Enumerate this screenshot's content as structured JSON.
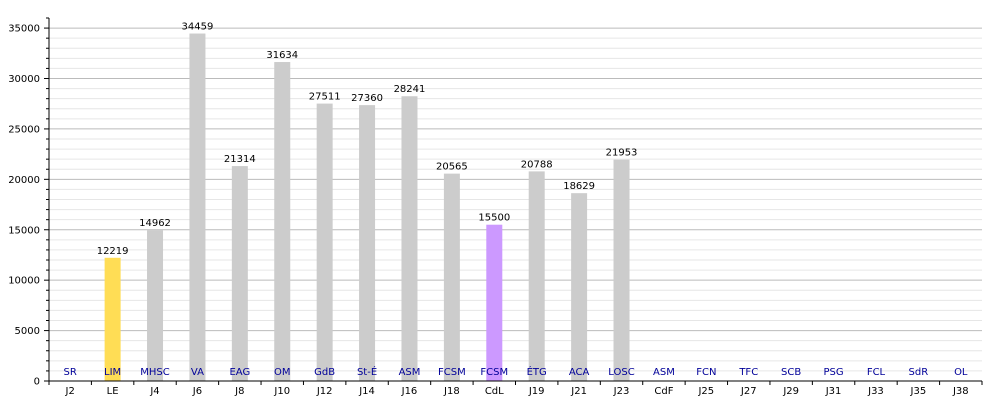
{
  "chart_data": {
    "type": "bar",
    "title": "",
    "xlabel": "",
    "ylabel": "",
    "ylim": [
      0,
      36000
    ],
    "yticks": [
      0,
      5000,
      10000,
      15000,
      20000,
      25000,
      30000,
      35000
    ],
    "grid": true,
    "categories": [
      "J2",
      "LE",
      "J4",
      "J6",
      "J8",
      "J10",
      "J12",
      "J14",
      "J16",
      "J18",
      "CdL",
      "J19",
      "J21",
      "J23",
      "CdF",
      "J25",
      "J27",
      "J29",
      "J31",
      "J33",
      "J35",
      "J38"
    ],
    "opponents": [
      "SR",
      "LIM",
      "MHSC",
      "VA",
      "EAG",
      "OM",
      "GdB",
      "St-É",
      "ASM",
      "FCSM",
      "FCSM",
      "ÉTG",
      "ACA",
      "LOSC",
      "ASM",
      "FCN",
      "TFC",
      "SCB",
      "PSG",
      "FCL",
      "SdR",
      "OL"
    ],
    "values": [
      null,
      12219,
      14962,
      34459,
      21314,
      31634,
      27511,
      27360,
      28241,
      20565,
      15500,
      20788,
      18629,
      21953,
      null,
      null,
      null,
      null,
      null,
      null,
      null,
      null
    ],
    "labels": [
      "",
      "12219",
      "14962",
      "34459",
      "21314",
      "31634",
      "27511",
      "27360",
      "28241",
      "20565",
      "15500",
      "20788",
      "18629",
      "21953",
      "",
      "",
      "",
      "",
      "",
      "",
      "",
      ""
    ],
    "colors": {
      "league": "#cccccc",
      "coupe_ligue": "#cc99ff",
      "europe": "#ffdd55",
      "opponent_text": "#000099",
      "grid_major": "#bbbbbb",
      "grid_minor": "#e6e6e6"
    },
    "bar_kind": [
      "",
      "europe",
      "league",
      "league",
      "league",
      "league",
      "league",
      "league",
      "league",
      "league",
      "coupe_ligue",
      "league",
      "league",
      "league",
      "",
      "",
      "",
      "",
      "",
      "",
      "",
      ""
    ]
  }
}
